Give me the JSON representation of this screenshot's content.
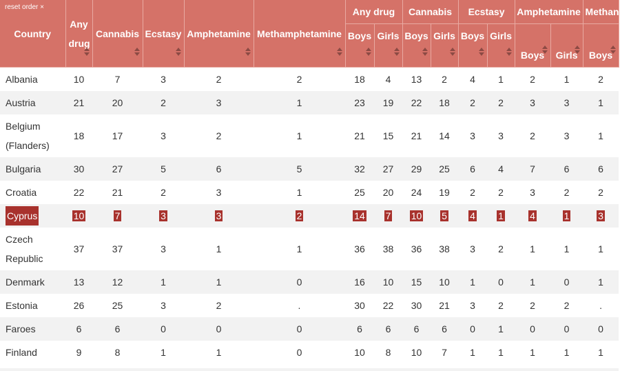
{
  "header": {
    "reset_label": "reset order ×",
    "country": "Country",
    "totals": [
      "Any drug",
      "Cannabis",
      "Ecstasy",
      "Amphetamine",
      "Methamphetamine"
    ],
    "groups": [
      "Any drug",
      "Cannabis",
      "Ecstasy",
      "Amphetamine",
      "Methan"
    ],
    "boys": "Boys",
    "girls": "Girls"
  },
  "colors": {
    "header_bg": "#d57268",
    "highlight_bg": "#a8322d",
    "stripe_bg": "#f2f2f2"
  },
  "rows": [
    {
      "country": "Albania",
      "v": [
        "10",
        "7",
        "3",
        "2",
        "2",
        "18",
        "4",
        "13",
        "2",
        "4",
        "1",
        "2",
        "1",
        "2"
      ]
    },
    {
      "country": "Austria",
      "v": [
        "21",
        "20",
        "2",
        "3",
        "1",
        "23",
        "19",
        "22",
        "18",
        "2",
        "2",
        "3",
        "3",
        "1"
      ]
    },
    {
      "country": "Belgium (Flanders)",
      "v": [
        "18",
        "17",
        "3",
        "2",
        "1",
        "21",
        "15",
        "21",
        "14",
        "3",
        "3",
        "2",
        "3",
        "1"
      ]
    },
    {
      "country": "Bulgaria",
      "v": [
        "30",
        "27",
        "5",
        "6",
        "5",
        "32",
        "27",
        "29",
        "25",
        "6",
        "4",
        "7",
        "6",
        "6"
      ]
    },
    {
      "country": "Croatia",
      "v": [
        "22",
        "21",
        "2",
        "3",
        "1",
        "25",
        "20",
        "24",
        "19",
        "2",
        "2",
        "3",
        "2",
        "2"
      ]
    },
    {
      "country": "Cyprus",
      "v": [
        "10",
        "7",
        "3",
        "3",
        "2",
        "14",
        "7",
        "10",
        "5",
        "4",
        "1",
        "4",
        "1",
        "3"
      ]
    },
    {
      "country": "Czech Republic",
      "v": [
        "37",
        "37",
        "3",
        "1",
        "1",
        "36",
        "38",
        "36",
        "38",
        "3",
        "2",
        "1",
        "1",
        "1"
      ]
    },
    {
      "country": "Denmark",
      "v": [
        "13",
        "12",
        "1",
        "1",
        "0",
        "16",
        "10",
        "15",
        "10",
        "1",
        "0",
        "1",
        "0",
        "1"
      ]
    },
    {
      "country": "Estonia",
      "v": [
        "26",
        "25",
        "3",
        "2",
        ".",
        "30",
        "22",
        "30",
        "21",
        "3",
        "2",
        "2",
        "2",
        "."
      ]
    },
    {
      "country": "Faroes",
      "v": [
        "6",
        "6",
        "0",
        "0",
        "0",
        "6",
        "6",
        "6",
        "6",
        "0",
        "1",
        "0",
        "0",
        "0"
      ]
    },
    {
      "country": "Finland",
      "v": [
        "9",
        "8",
        "1",
        "1",
        "0",
        "10",
        "8",
        "10",
        "7",
        "1",
        "1",
        "1",
        "1",
        "1"
      ]
    }
  ]
}
